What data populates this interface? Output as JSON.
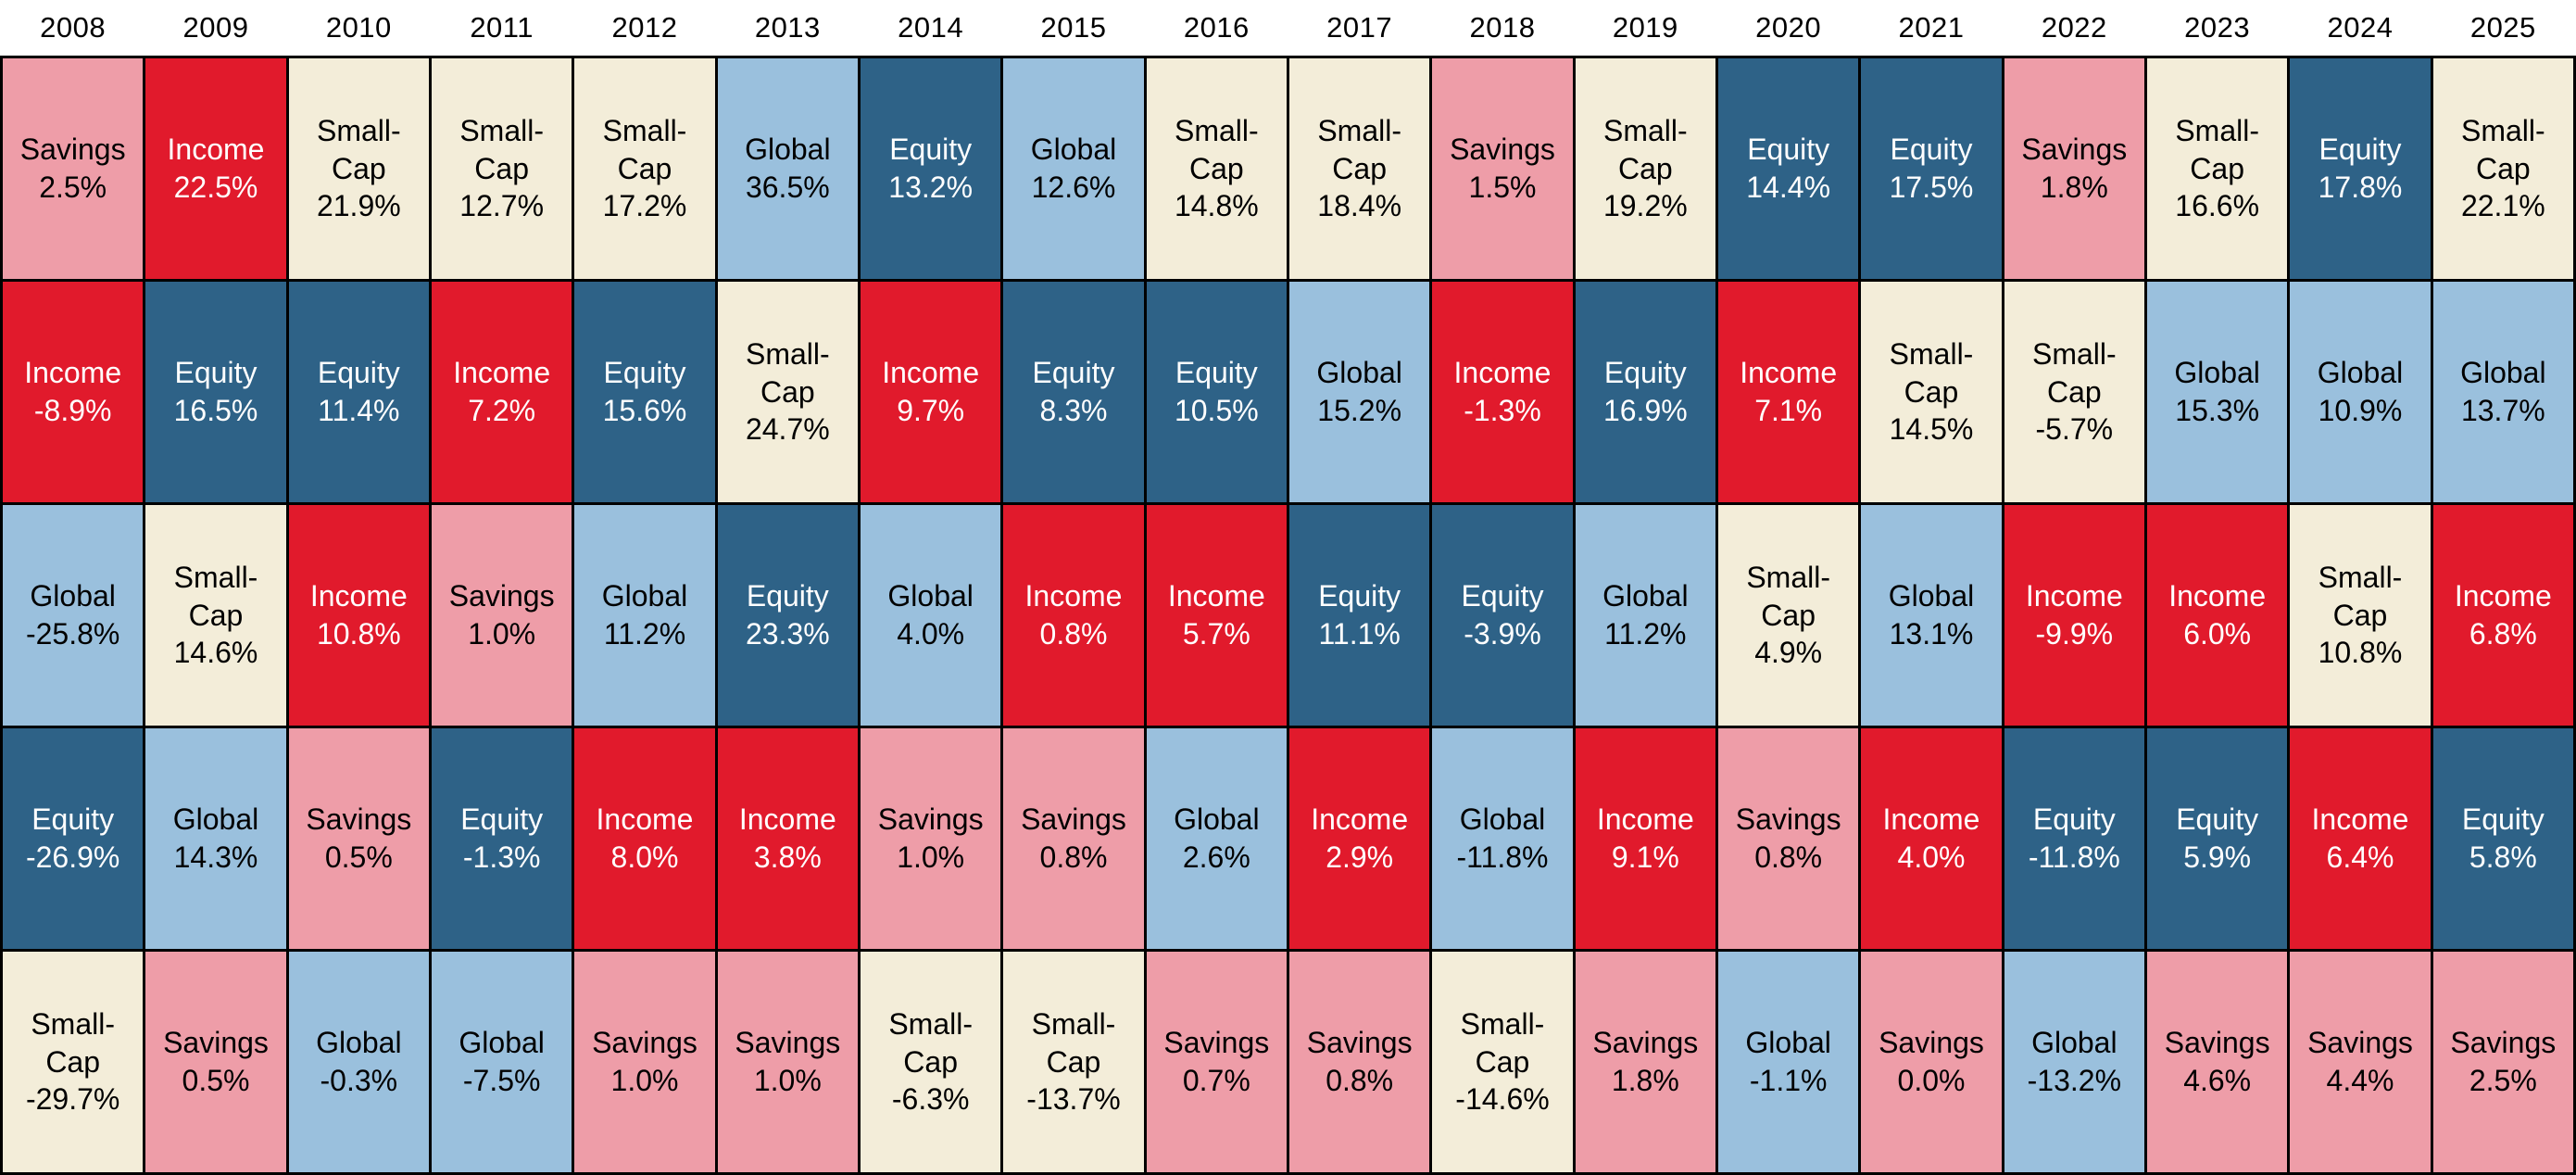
{
  "chart_data": {
    "type": "heatmap",
    "description_years": [
      "2008",
      "2009",
      "2010",
      "2011",
      "2012",
      "2013",
      "2014",
      "2015",
      "2016",
      "2017",
      "2018",
      "2019",
      "2020",
      "2021",
      "2022",
      "2023",
      "2024",
      "2025"
    ],
    "asset_classes": [
      "Savings",
      "Income",
      "Small-Cap",
      "Global",
      "Equity"
    ],
    "asset_colors": {
      "Savings": "#EE9DA8",
      "Income": "#E11A2C",
      "Small-Cap": "#F3EDD9",
      "Global": "#9AC0DD",
      "Equity": "#2E6287"
    },
    "asset_text_colors": {
      "Savings": "#000000",
      "Income": "#FFFFFF",
      "Small-Cap": "#000000",
      "Global": "#000000",
      "Equity": "#FFFFFF"
    },
    "grid_line_color": "#000000",
    "background_color": "#FFFFFF",
    "columns": [
      {
        "year": "2008",
        "entries": [
          {
            "asset": "Savings",
            "value": 2.5,
            "pct": "2.5%"
          },
          {
            "asset": "Income",
            "value": -8.9,
            "pct": "-8.9%"
          },
          {
            "asset": "Global",
            "value": -25.8,
            "pct": "-25.8%"
          },
          {
            "asset": "Equity",
            "value": -26.9,
            "pct": "-26.9%"
          },
          {
            "asset": "Small-Cap",
            "value": -29.7,
            "pct": "-29.7%"
          }
        ]
      },
      {
        "year": "2009",
        "entries": [
          {
            "asset": "Income",
            "value": 22.5,
            "pct": "22.5%"
          },
          {
            "asset": "Equity",
            "value": 16.5,
            "pct": "16.5%"
          },
          {
            "asset": "Small-Cap",
            "value": 14.6,
            "pct": "14.6%"
          },
          {
            "asset": "Global",
            "value": 14.3,
            "pct": "14.3%"
          },
          {
            "asset": "Savings",
            "value": 0.5,
            "pct": "0.5%"
          }
        ]
      },
      {
        "year": "2010",
        "entries": [
          {
            "asset": "Small-Cap",
            "value": 21.9,
            "pct": "21.9%"
          },
          {
            "asset": "Equity",
            "value": 11.4,
            "pct": "11.4%"
          },
          {
            "asset": "Income",
            "value": 10.8,
            "pct": "10.8%"
          },
          {
            "asset": "Savings",
            "value": 0.5,
            "pct": "0.5%"
          },
          {
            "asset": "Global",
            "value": -0.3,
            "pct": "-0.3%"
          }
        ]
      },
      {
        "year": "2011",
        "entries": [
          {
            "asset": "Small-Cap",
            "value": 12.7,
            "pct": "12.7%"
          },
          {
            "asset": "Income",
            "value": 7.2,
            "pct": "7.2%"
          },
          {
            "asset": "Savings",
            "value": 1.0,
            "pct": "1.0%"
          },
          {
            "asset": "Equity",
            "value": -1.3,
            "pct": "-1.3%"
          },
          {
            "asset": "Global",
            "value": -7.5,
            "pct": "-7.5%"
          }
        ]
      },
      {
        "year": "2012",
        "entries": [
          {
            "asset": "Small-Cap",
            "value": 17.2,
            "pct": "17.2%"
          },
          {
            "asset": "Equity",
            "value": 15.6,
            "pct": "15.6%"
          },
          {
            "asset": "Global",
            "value": 11.2,
            "pct": "11.2%"
          },
          {
            "asset": "Income",
            "value": 8.0,
            "pct": "8.0%"
          },
          {
            "asset": "Savings",
            "value": 1.0,
            "pct": "1.0%"
          }
        ]
      },
      {
        "year": "2013",
        "entries": [
          {
            "asset": "Global",
            "value": 36.5,
            "pct": "36.5%"
          },
          {
            "asset": "Small-Cap",
            "value": 24.7,
            "pct": "24.7%"
          },
          {
            "asset": "Equity",
            "value": 23.3,
            "pct": "23.3%"
          },
          {
            "asset": "Income",
            "value": 3.8,
            "pct": "3.8%"
          },
          {
            "asset": "Savings",
            "value": 1.0,
            "pct": "1.0%"
          }
        ]
      },
      {
        "year": "2014",
        "entries": [
          {
            "asset": "Equity",
            "value": 13.2,
            "pct": "13.2%"
          },
          {
            "asset": "Income",
            "value": 9.7,
            "pct": "9.7%"
          },
          {
            "asset": "Global",
            "value": 4.0,
            "pct": "4.0%"
          },
          {
            "asset": "Savings",
            "value": 1.0,
            "pct": "1.0%"
          },
          {
            "asset": "Small-Cap",
            "value": -6.3,
            "pct": "-6.3%"
          }
        ]
      },
      {
        "year": "2015",
        "entries": [
          {
            "asset": "Global",
            "value": 12.6,
            "pct": "12.6%"
          },
          {
            "asset": "Equity",
            "value": 8.3,
            "pct": "8.3%"
          },
          {
            "asset": "Income",
            "value": 0.8,
            "pct": "0.8%"
          },
          {
            "asset": "Savings",
            "value": 0.8,
            "pct": "0.8%"
          },
          {
            "asset": "Small-Cap",
            "value": -13.7,
            "pct": "-13.7%"
          }
        ]
      },
      {
        "year": "2016",
        "entries": [
          {
            "asset": "Small-Cap",
            "value": 14.8,
            "pct": "14.8%"
          },
          {
            "asset": "Equity",
            "value": 10.5,
            "pct": "10.5%"
          },
          {
            "asset": "Income",
            "value": 5.7,
            "pct": "5.7%"
          },
          {
            "asset": "Global",
            "value": 2.6,
            "pct": "2.6%"
          },
          {
            "asset": "Savings",
            "value": 0.7,
            "pct": "0.7%"
          }
        ]
      },
      {
        "year": "2017",
        "entries": [
          {
            "asset": "Small-Cap",
            "value": 18.4,
            "pct": "18.4%"
          },
          {
            "asset": "Global",
            "value": 15.2,
            "pct": "15.2%"
          },
          {
            "asset": "Equity",
            "value": 11.1,
            "pct": "11.1%"
          },
          {
            "asset": "Income",
            "value": 2.9,
            "pct": "2.9%"
          },
          {
            "asset": "Savings",
            "value": 0.8,
            "pct": "0.8%"
          }
        ]
      },
      {
        "year": "2018",
        "entries": [
          {
            "asset": "Savings",
            "value": 1.5,
            "pct": "1.5%"
          },
          {
            "asset": "Income",
            "value": -1.3,
            "pct": "-1.3%"
          },
          {
            "asset": "Equity",
            "value": -3.9,
            "pct": "-3.9%"
          },
          {
            "asset": "Global",
            "value": -11.8,
            "pct": "-11.8%"
          },
          {
            "asset": "Small-Cap",
            "value": -14.6,
            "pct": "-14.6%"
          }
        ]
      },
      {
        "year": "2019",
        "entries": [
          {
            "asset": "Small-Cap",
            "value": 19.2,
            "pct": "19.2%"
          },
          {
            "asset": "Equity",
            "value": 16.9,
            "pct": "16.9%"
          },
          {
            "asset": "Global",
            "value": 11.2,
            "pct": "11.2%"
          },
          {
            "asset": "Income",
            "value": 9.1,
            "pct": "9.1%"
          },
          {
            "asset": "Savings",
            "value": 1.8,
            "pct": "1.8%"
          }
        ]
      },
      {
        "year": "2020",
        "entries": [
          {
            "asset": "Equity",
            "value": 14.4,
            "pct": "14.4%"
          },
          {
            "asset": "Income",
            "value": 7.1,
            "pct": "7.1%"
          },
          {
            "asset": "Small-Cap",
            "value": 4.9,
            "pct": "4.9%"
          },
          {
            "asset": "Savings",
            "value": 0.8,
            "pct": "0.8%"
          },
          {
            "asset": "Global",
            "value": -1.1,
            "pct": "-1.1%"
          }
        ]
      },
      {
        "year": "2021",
        "entries": [
          {
            "asset": "Equity",
            "value": 17.5,
            "pct": "17.5%"
          },
          {
            "asset": "Small-Cap",
            "value": 14.5,
            "pct": "14.5%"
          },
          {
            "asset": "Global",
            "value": 13.1,
            "pct": "13.1%"
          },
          {
            "asset": "Income",
            "value": 4.0,
            "pct": "4.0%"
          },
          {
            "asset": "Savings",
            "value": 0.0,
            "pct": "0.0%"
          }
        ]
      },
      {
        "year": "2022",
        "entries": [
          {
            "asset": "Savings",
            "value": 1.8,
            "pct": "1.8%"
          },
          {
            "asset": "Small-Cap",
            "value": -5.7,
            "pct": "-5.7%"
          },
          {
            "asset": "Income",
            "value": -9.9,
            "pct": "-9.9%"
          },
          {
            "asset": "Equity",
            "value": -11.8,
            "pct": "-11.8%"
          },
          {
            "asset": "Global",
            "value": -13.2,
            "pct": "-13.2%"
          }
        ]
      },
      {
        "year": "2023",
        "entries": [
          {
            "asset": "Small-Cap",
            "value": 16.6,
            "pct": "16.6%"
          },
          {
            "asset": "Global",
            "value": 15.3,
            "pct": "15.3%"
          },
          {
            "asset": "Income",
            "value": 6.0,
            "pct": "6.0%"
          },
          {
            "asset": "Equity",
            "value": 5.9,
            "pct": "5.9%"
          },
          {
            "asset": "Savings",
            "value": 4.6,
            "pct": "4.6%"
          }
        ]
      },
      {
        "year": "2024",
        "entries": [
          {
            "asset": "Equity",
            "value": 17.8,
            "pct": "17.8%"
          },
          {
            "asset": "Global",
            "value": 10.9,
            "pct": "10.9%"
          },
          {
            "asset": "Small-Cap",
            "value": 10.8,
            "pct": "10.8%"
          },
          {
            "asset": "Income",
            "value": 6.4,
            "pct": "6.4%"
          },
          {
            "asset": "Savings",
            "value": 4.4,
            "pct": "4.4%"
          }
        ]
      },
      {
        "year": "2025",
        "entries": [
          {
            "asset": "Small-Cap",
            "value": 22.1,
            "pct": "22.1%"
          },
          {
            "asset": "Global",
            "value": 13.7,
            "pct": "13.7%"
          },
          {
            "asset": "Income",
            "value": 6.8,
            "pct": "6.8%"
          },
          {
            "asset": "Equity",
            "value": 5.8,
            "pct": "5.8%"
          },
          {
            "asset": "Savings",
            "value": 2.5,
            "pct": "2.5%"
          }
        ]
      }
    ]
  }
}
